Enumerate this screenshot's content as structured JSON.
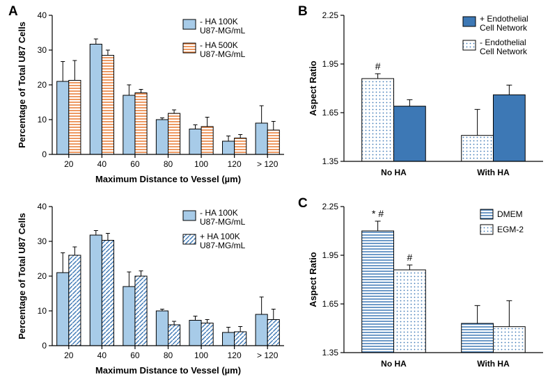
{
  "colors": {
    "lightblue_fill": "#a7cbe8",
    "midblue_fill": "#3d78b5",
    "orange_stroke": "#e8772e",
    "blue_stroke": "#3d78b5",
    "white_fill": "#ffffff",
    "black": "#000000"
  },
  "panelA_top": {
    "type": "bar",
    "categories": [
      "20",
      "40",
      "60",
      "80",
      "100",
      "120",
      "> 120"
    ],
    "series": [
      {
        "name": "- HA 100K",
        "values": [
          21,
          31.7,
          17,
          10,
          7.3,
          3.8,
          9
        ],
        "errors": [
          5.7,
          1.5,
          3,
          0.5,
          1.2,
          1.5,
          5
        ],
        "fill": "lightblue_solid"
      },
      {
        "name": "- HA 500K",
        "values": [
          21.3,
          28.5,
          17.7,
          11.8,
          8,
          4.7,
          7
        ],
        "errors": [
          5.7,
          1.5,
          1,
          1,
          2.7,
          1,
          2.5
        ],
        "fill": "orange_horiz"
      }
    ],
    "ylim": [
      0,
      40
    ],
    "ytick_step": 10,
    "xlabel": "Maximum Distance to Vessel (µm)",
    "ylabel": "Percentage of Total U87 Cells",
    "legend_suffix": "U87-MG/mL",
    "bar_width": 0.36,
    "font": {
      "axis_title": 13,
      "tick": 12,
      "legend": 12
    }
  },
  "panelA_bottom": {
    "type": "bar",
    "categories": [
      "20",
      "40",
      "60",
      "80",
      "100",
      "120",
      "> 120"
    ],
    "series": [
      {
        "name": "- HA 100K",
        "values": [
          21,
          31.8,
          17,
          10,
          7.3,
          3.8,
          9
        ],
        "errors": [
          5.7,
          1.3,
          4.2,
          0.5,
          1.2,
          1.5,
          5
        ],
        "fill": "lightblue_solid"
      },
      {
        "name": "+ HA 100K",
        "values": [
          26,
          30.3,
          20,
          6,
          6.5,
          4,
          7.5
        ],
        "errors": [
          2.4,
          2,
          1.5,
          1,
          1,
          1.5,
          3
        ],
        "fill": "lightblue_diag"
      }
    ],
    "ylim": [
      0,
      40
    ],
    "ytick_step": 10,
    "xlabel": "Maximum Distance to Vessel (µm)",
    "ylabel": "Percentage of Total U87 Cells",
    "legend_suffix": "U87-MG/mL",
    "bar_width": 0.36,
    "font": {
      "axis_title": 13,
      "tick": 12,
      "legend": 12
    }
  },
  "panelB": {
    "type": "bar",
    "categories": [
      "No HA",
      "With HA"
    ],
    "series": [
      {
        "name": "- Endothelial Cell Network",
        "values": [
          1.86,
          1.51
        ],
        "errors": [
          0.03,
          0.16
        ],
        "fill": "dot_white",
        "marks": [
          "#",
          ""
        ]
      },
      {
        "name": "+ Endothelial Cell Network",
        "values": [
          1.69,
          1.76
        ],
        "errors": [
          0.04,
          0.06
        ],
        "fill": "midblue_solid",
        "marks": [
          "",
          ""
        ]
      }
    ],
    "ylim": [
      1.35,
      2.25
    ],
    "yticks": [
      1.35,
      1.65,
      1.95,
      2.25
    ],
    "ylabel": "Aspect Ratio",
    "bar_width": 0.32,
    "font": {
      "axis_title": 13,
      "tick": 12,
      "legend": 12
    },
    "legend_labels": [
      "+ Endothelial",
      "Cell Network",
      "- Endothelial",
      "Cell Network"
    ]
  },
  "panelC": {
    "type": "bar",
    "categories": [
      "No HA",
      "With HA"
    ],
    "series": [
      {
        "name": "DMEM",
        "values": [
          2.1,
          1.53
        ],
        "errors": [
          0.06,
          0.11
        ],
        "fill": "lightblue_horiz",
        "marks": [
          "* #",
          ""
        ]
      },
      {
        "name": "EGM-2",
        "values": [
          1.86,
          1.51
        ],
        "errors": [
          0.03,
          0.16
        ],
        "fill": "dot_white",
        "marks": [
          "#",
          ""
        ]
      }
    ],
    "ylim": [
      1.35,
      2.25
    ],
    "yticks": [
      1.35,
      1.65,
      1.95,
      2.25
    ],
    "ylabel": "Aspect Ratio",
    "bar_width": 0.32,
    "font": {
      "axis_title": 13,
      "tick": 12,
      "legend": 12
    }
  },
  "labels": {
    "A": "A",
    "B": "B",
    "C": "C"
  }
}
